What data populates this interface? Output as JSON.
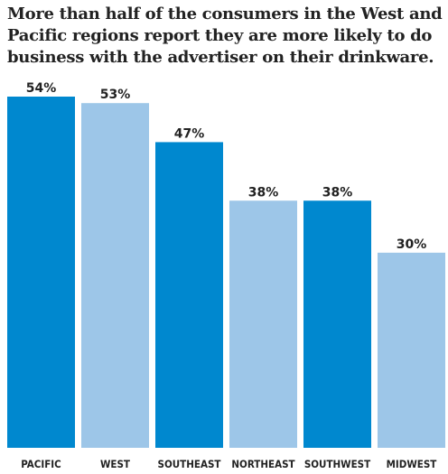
{
  "chart_data": {
    "type": "bar",
    "title": "More than half of the consumers in the West and Pacific regions report they are more likely to do business with the advertiser on their drinkware.",
    "categories": [
      "PACIFIC",
      "WEST",
      "SOUTHEAST",
      "NORTHEAST",
      "SOUTHWEST",
      "MIDWEST"
    ],
    "values": [
      54,
      53,
      47,
      38,
      38,
      30
    ],
    "value_labels": [
      "54%",
      "53%",
      "47%",
      "38%",
      "38%",
      "30%"
    ],
    "ylim": [
      0,
      54
    ],
    "grid": false,
    "legend": "none",
    "colors": [
      "#0088cf",
      "#9dc6e8",
      "#0088cf",
      "#9dc6e8",
      "#0088cf",
      "#9dc6e8"
    ]
  }
}
